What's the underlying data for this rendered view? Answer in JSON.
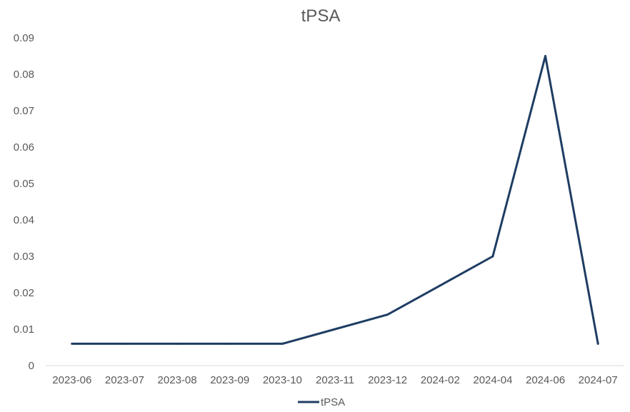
{
  "chart_data": {
    "type": "line",
    "title": "tPSA",
    "xlabel": "",
    "ylabel": "",
    "categories": [
      "2023-06",
      "2023-07",
      "2023-08",
      "2023-09",
      "2023-10",
      "2023-11",
      "2023-12",
      "2024-02",
      "2024-04",
      "2024-06",
      "2024-07"
    ],
    "series": [
      {
        "name": "tPSA",
        "values": [
          0.006,
          0.006,
          0.006,
          0.006,
          0.006,
          0.01,
          0.014,
          0.022,
          0.03,
          0.085,
          0.006
        ],
        "color": "#1F3D63"
      }
    ],
    "ylim": [
      0,
      0.09
    ],
    "yticks": [
      "0",
      "0.01",
      "0.02",
      "0.03",
      "0.04",
      "0.05",
      "0.06",
      "0.07",
      "0.08",
      "0.09"
    ],
    "grid": false,
    "legend": "bottom"
  }
}
